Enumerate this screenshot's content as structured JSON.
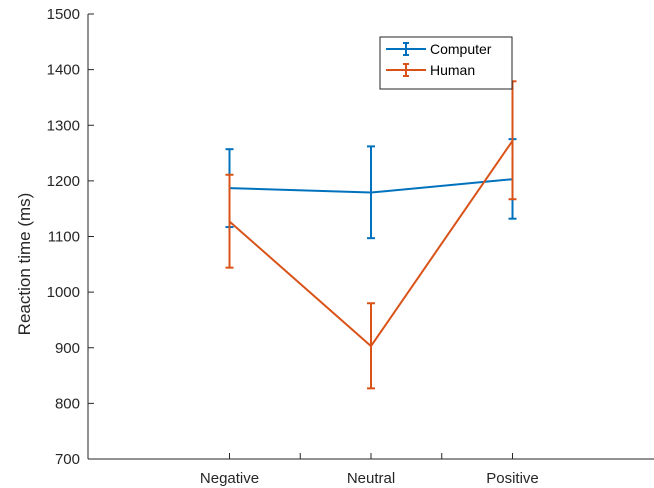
{
  "chart_data": {
    "type": "line",
    "title": "",
    "xlabel": "",
    "ylabel": "Reaction time (ms)",
    "categories": [
      "Negative",
      "Neutral",
      "Positive"
    ],
    "ylim": [
      700,
      1500
    ],
    "yticks": [
      "700",
      "800",
      "900",
      "1000",
      "1100",
      "1200",
      "1300",
      "1400",
      "1500"
    ],
    "grid": false,
    "legend_position": "top-right",
    "series": [
      {
        "name": "Computer",
        "color": "#0072BD",
        "values": [
          1187,
          1179,
          1203
        ],
        "error_low": [
          1117,
          1097,
          1132
        ],
        "error_high": [
          1257,
          1262,
          1275
        ]
      },
      {
        "name": "Human",
        "color": "#D95319",
        "values": [
          1127,
          903,
          1272
        ],
        "error_low": [
          1044,
          827,
          1167
        ],
        "error_high": [
          1211,
          980,
          1379
        ]
      }
    ]
  }
}
